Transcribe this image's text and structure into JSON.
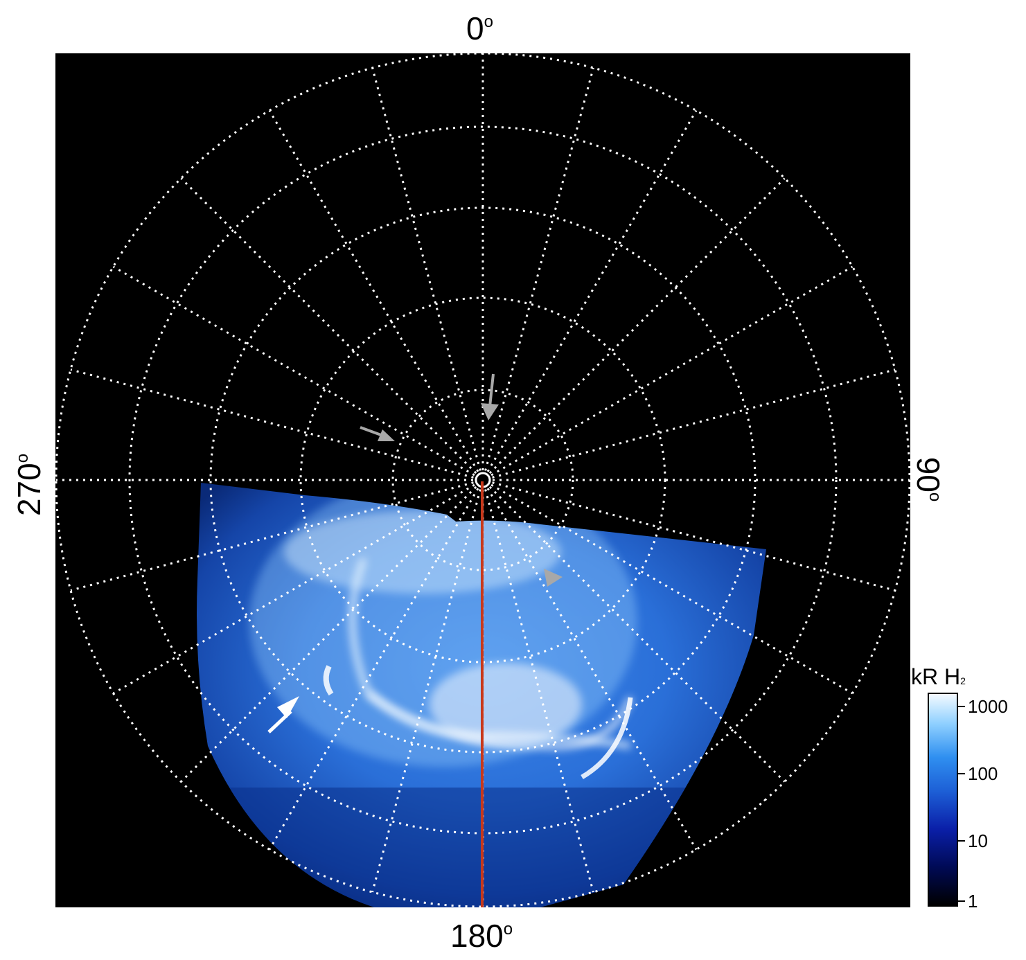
{
  "axis_labels": {
    "top": "0",
    "bottom": "180",
    "left": "270",
    "right": "90",
    "degree_mark": "o"
  },
  "colorbar": {
    "title": "kR H",
    "title_subscript": "2",
    "ticks": [
      "1000",
      "100",
      "10",
      "1"
    ]
  },
  "colors": {
    "background": "#000000",
    "grid": "#ffffff",
    "meridian_line": "#c8381a",
    "arrow_white": "#ffffff",
    "arrow_grey": "#a8a8a8",
    "aurora_dim": "#1d5fd6",
    "aurora_bright": "#eaf6ff"
  },
  "annotations": [
    {
      "name": "white-arrow",
      "color": "white"
    },
    {
      "name": "grey-arrow-top",
      "color": "grey"
    },
    {
      "name": "grey-arrow-left",
      "color": "grey"
    },
    {
      "name": "grey-arrow-right",
      "color": "grey"
    }
  ]
}
